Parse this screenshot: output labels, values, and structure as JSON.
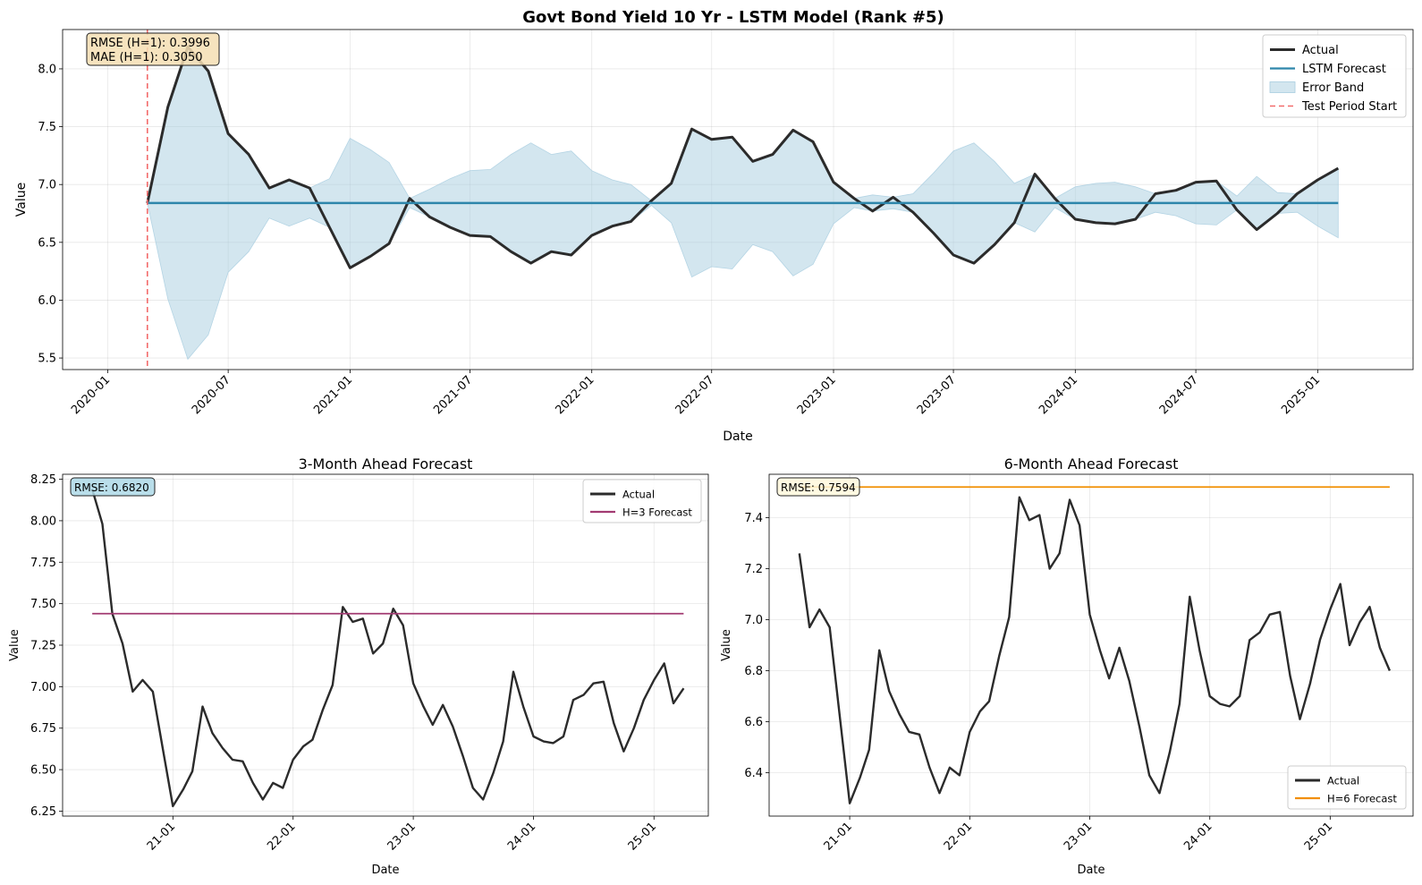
{
  "figure_title": "Govt Bond Yield 10 Yr - LSTM Model (Rank #5)",
  "chart_data": [
    {
      "type": "line",
      "title": "Govt Bond Yield 10 Yr - LSTM Model (Rank #5)",
      "xlabel": "Date",
      "ylabel": "Value",
      "x_range": [
        "2019-10-25",
        "2025-05-25"
      ],
      "ylim": [
        5.4,
        8.34
      ],
      "x_ticks": [
        {
          "date": "2020-01-01",
          "label": "2020-01"
        },
        {
          "date": "2020-07-01",
          "label": "2020-07"
        },
        {
          "date": "2021-01-01",
          "label": "2021-01"
        },
        {
          "date": "2021-07-01",
          "label": "2021-07"
        },
        {
          "date": "2022-01-01",
          "label": "2022-01"
        },
        {
          "date": "2022-07-01",
          "label": "2022-07"
        },
        {
          "date": "2023-01-01",
          "label": "2023-01"
        },
        {
          "date": "2023-07-01",
          "label": "2023-07"
        },
        {
          "date": "2024-01-01",
          "label": "2024-01"
        },
        {
          "date": "2024-07-01",
          "label": "2024-07"
        },
        {
          "date": "2025-01-01",
          "label": "2025-01"
        }
      ],
      "y_ticks": [
        "5.5",
        "6.0",
        "6.5",
        "7.0",
        "7.5",
        "8.0"
      ],
      "grid": true,
      "legend_position": "top-right",
      "annotation": [
        "RMSE (H=1): 0.3996",
        "MAE (H=1): 0.3050"
      ],
      "dates": [
        "2020-03-01",
        "2020-04-01",
        "2020-05-01",
        "2020-06-01",
        "2020-07-01",
        "2020-08-01",
        "2020-09-01",
        "2020-10-01",
        "2020-11-01",
        "2020-12-01",
        "2021-01-01",
        "2021-02-01",
        "2021-03-01",
        "2021-04-01",
        "2021-05-01",
        "2021-06-01",
        "2021-07-01",
        "2021-08-01",
        "2021-09-01",
        "2021-10-01",
        "2021-11-01",
        "2021-12-01",
        "2022-01-01",
        "2022-02-01",
        "2022-03-01",
        "2022-04-01",
        "2022-05-01",
        "2022-06-01",
        "2022-07-01",
        "2022-08-01",
        "2022-09-01",
        "2022-10-01",
        "2022-11-01",
        "2022-12-01",
        "2023-01-01",
        "2023-02-01",
        "2023-03-01",
        "2023-04-01",
        "2023-05-01",
        "2023-06-01",
        "2023-07-01",
        "2023-08-01",
        "2023-09-01",
        "2023-10-01",
        "2023-11-01",
        "2023-12-01",
        "2024-01-01",
        "2024-02-01",
        "2024-03-01",
        "2024-04-01",
        "2024-05-01",
        "2024-06-01",
        "2024-07-01",
        "2024-08-01",
        "2024-09-01",
        "2024-10-01",
        "2024-11-01",
        "2024-12-01",
        "2025-01-01",
        "2025-02-01"
      ],
      "series": [
        {
          "name": "Actual",
          "color": "#2b2b2b",
          "values": [
            6.84,
            7.67,
            8.19,
            7.98,
            7.44,
            7.26,
            6.97,
            7.04,
            6.97,
            6.63,
            6.28,
            6.38,
            6.49,
            6.88,
            6.72,
            6.63,
            6.56,
            6.55,
            6.42,
            6.32,
            6.42,
            6.39,
            6.56,
            6.64,
            6.68,
            6.86,
            7.01,
            7.48,
            7.39,
            7.41,
            7.2,
            7.26,
            7.47,
            7.37,
            7.02,
            6.88,
            6.77,
            6.89,
            6.76,
            6.58,
            6.39,
            6.32,
            6.48,
            6.67,
            7.09,
            6.88,
            6.7,
            6.67,
            6.66,
            6.7,
            6.92,
            6.95,
            7.02,
            7.03,
            6.78,
            6.61,
            6.75,
            6.92,
            7.04,
            7.14
          ]
        },
        {
          "name": "LSTM Forecast",
          "color": "#2e86ab",
          "value": 6.84
        },
        {
          "name": "Error Band",
          "color": "#a8cde0",
          "lower": [
            6.84,
            6.01,
            5.49,
            5.7,
            6.24,
            6.42,
            6.71,
            6.64,
            6.71,
            6.63,
            6.28,
            6.38,
            6.49,
            6.8,
            6.72,
            6.63,
            6.56,
            6.55,
            6.42,
            6.32,
            6.42,
            6.39,
            6.56,
            6.64,
            6.68,
            6.82,
            6.67,
            6.2,
            6.29,
            6.27,
            6.48,
            6.42,
            6.21,
            6.31,
            6.66,
            6.8,
            6.77,
            6.79,
            6.76,
            6.58,
            6.39,
            6.32,
            6.48,
            6.67,
            6.59,
            6.8,
            6.7,
            6.67,
            6.66,
            6.7,
            6.76,
            6.73,
            6.66,
            6.65,
            6.78,
            6.61,
            6.75,
            6.76,
            6.64,
            6.54
          ],
          "upper": [
            6.84,
            7.67,
            8.19,
            7.98,
            7.44,
            7.26,
            6.97,
            7.04,
            6.97,
            7.05,
            7.4,
            7.3,
            7.19,
            6.88,
            6.96,
            7.05,
            7.12,
            7.13,
            7.26,
            7.36,
            7.26,
            7.29,
            7.12,
            7.04,
            7.0,
            6.86,
            7.01,
            7.48,
            7.39,
            7.41,
            7.2,
            7.26,
            7.47,
            7.37,
            7.02,
            6.88,
            6.91,
            6.89,
            6.92,
            7.1,
            7.29,
            7.36,
            7.2,
            7.01,
            7.09,
            6.88,
            6.98,
            7.01,
            7.02,
            6.98,
            6.92,
            6.95,
            7.02,
            7.03,
            6.9,
            7.07,
            6.93,
            6.92,
            7.04,
            7.14
          ]
        },
        {
          "name": "Test Period Start",
          "color": "#f26b6b",
          "date": "2020-03-01"
        }
      ]
    },
    {
      "type": "line",
      "title": "3-Month Ahead Forecast",
      "xlabel": "Date",
      "ylabel": "Value",
      "x_range": [
        "2020-02-01",
        "2025-06-15"
      ],
      "ylim": [
        6.22,
        8.28
      ],
      "x_ticks": [
        {
          "date": "2021-01-01",
          "label": "21-01"
        },
        {
          "date": "2022-01-01",
          "label": "22-01"
        },
        {
          "date": "2023-01-01",
          "label": "23-01"
        },
        {
          "date": "2024-01-01",
          "label": "24-01"
        },
        {
          "date": "2025-01-01",
          "label": "25-01"
        }
      ],
      "y_ticks": [
        "6.25",
        "6.50",
        "6.75",
        "7.00",
        "7.25",
        "7.50",
        "7.75",
        "8.00",
        "8.25"
      ],
      "grid": true,
      "legend_position": "top-right",
      "annotation": [
        "RMSE: 0.6820"
      ],
      "dates": [
        "2020-05-01",
        "2020-06-01",
        "2020-07-01",
        "2020-08-01",
        "2020-09-01",
        "2020-10-01",
        "2020-11-01",
        "2020-12-01",
        "2021-01-01",
        "2021-02-01",
        "2021-03-01",
        "2021-04-01",
        "2021-05-01",
        "2021-06-01",
        "2021-07-01",
        "2021-08-01",
        "2021-09-01",
        "2021-10-01",
        "2021-11-01",
        "2021-12-01",
        "2022-01-01",
        "2022-02-01",
        "2022-03-01",
        "2022-04-01",
        "2022-05-01",
        "2022-06-01",
        "2022-07-01",
        "2022-08-01",
        "2022-09-01",
        "2022-10-01",
        "2022-11-01",
        "2022-12-01",
        "2023-01-01",
        "2023-02-01",
        "2023-03-01",
        "2023-04-01",
        "2023-05-01",
        "2023-06-01",
        "2023-07-01",
        "2023-08-01",
        "2023-09-01",
        "2023-10-01",
        "2023-11-01",
        "2023-12-01",
        "2024-01-01",
        "2024-02-01",
        "2024-03-01",
        "2024-04-01",
        "2024-05-01",
        "2024-06-01",
        "2024-07-01",
        "2024-08-01",
        "2024-09-01",
        "2024-10-01",
        "2024-11-01",
        "2024-12-01",
        "2025-01-01",
        "2025-02-01",
        "2025-03-01",
        "2025-04-01"
      ],
      "series": [
        {
          "name": "Actual",
          "color": "#2b2b2b",
          "values": [
            8.19,
            7.98,
            7.44,
            7.26,
            6.97,
            7.04,
            6.97,
            6.63,
            6.28,
            6.38,
            6.49,
            6.88,
            6.72,
            6.63,
            6.56,
            6.55,
            6.42,
            6.32,
            6.42,
            6.39,
            6.56,
            6.64,
            6.68,
            6.86,
            7.01,
            7.48,
            7.39,
            7.41,
            7.2,
            7.26,
            7.47,
            7.37,
            7.02,
            6.88,
            6.77,
            6.89,
            6.76,
            6.58,
            6.39,
            6.32,
            6.48,
            6.67,
            7.09,
            6.88,
            6.7,
            6.67,
            6.66,
            6.7,
            6.92,
            6.95,
            7.02,
            7.03,
            6.78,
            6.61,
            6.75,
            6.92,
            7.04,
            7.14,
            6.9,
            6.99
          ]
        },
        {
          "name": "H=3 Forecast",
          "color": "#a23b72",
          "value": 7.44
        }
      ]
    },
    {
      "type": "line",
      "title": "6-Month Ahead Forecast",
      "xlabel": "Date",
      "ylabel": "Value",
      "x_range": [
        "2020-05-01",
        "2025-09-10"
      ],
      "ylim": [
        6.23,
        7.57
      ],
      "x_ticks": [
        {
          "date": "2021-01-01",
          "label": "21-01"
        },
        {
          "date": "2022-01-01",
          "label": "22-01"
        },
        {
          "date": "2023-01-01",
          "label": "23-01"
        },
        {
          "date": "2024-01-01",
          "label": "24-01"
        },
        {
          "date": "2025-01-01",
          "label": "25-01"
        }
      ],
      "y_ticks": [
        "6.4",
        "6.6",
        "6.8",
        "7.0",
        "7.2",
        "7.4"
      ],
      "grid": true,
      "legend_position": "bottom-right",
      "annotation": [
        "RMSE: 0.7594"
      ],
      "dates": [
        "2020-08-01",
        "2020-09-01",
        "2020-10-01",
        "2020-11-01",
        "2020-12-01",
        "2021-01-01",
        "2021-02-01",
        "2021-03-01",
        "2021-04-01",
        "2021-05-01",
        "2021-06-01",
        "2021-07-01",
        "2021-08-01",
        "2021-09-01",
        "2021-10-01",
        "2021-11-01",
        "2021-12-01",
        "2022-01-01",
        "2022-02-01",
        "2022-03-01",
        "2022-04-01",
        "2022-05-01",
        "2022-06-01",
        "2022-07-01",
        "2022-08-01",
        "2022-09-01",
        "2022-10-01",
        "2022-11-01",
        "2022-12-01",
        "2023-01-01",
        "2023-02-01",
        "2023-03-01",
        "2023-04-01",
        "2023-05-01",
        "2023-06-01",
        "2023-07-01",
        "2023-08-01",
        "2023-09-01",
        "2023-10-01",
        "2023-11-01",
        "2023-12-01",
        "2024-01-01",
        "2024-02-01",
        "2024-03-01",
        "2024-04-01",
        "2024-05-01",
        "2024-06-01",
        "2024-07-01",
        "2024-08-01",
        "2024-09-01",
        "2024-10-01",
        "2024-11-01",
        "2024-12-01",
        "2025-01-01",
        "2025-02-01",
        "2025-03-01",
        "2025-04-01",
        "2025-05-01",
        "2025-06-01",
        "2025-07-01"
      ],
      "series": [
        {
          "name": "Actual",
          "color": "#2b2b2b",
          "values": [
            7.26,
            6.97,
            7.04,
            6.97,
            6.63,
            6.28,
            6.38,
            6.49,
            6.88,
            6.72,
            6.63,
            6.56,
            6.55,
            6.42,
            6.32,
            6.42,
            6.39,
            6.56,
            6.64,
            6.68,
            6.86,
            7.01,
            7.48,
            7.39,
            7.41,
            7.2,
            7.26,
            7.47,
            7.37,
            7.02,
            6.88,
            6.77,
            6.89,
            6.76,
            6.58,
            6.39,
            6.32,
            6.48,
            6.67,
            7.09,
            6.88,
            6.7,
            6.67,
            6.66,
            6.7,
            6.92,
            6.95,
            7.02,
            7.03,
            6.78,
            6.61,
            6.75,
            6.92,
            7.04,
            7.14,
            6.9,
            6.99,
            7.05,
            6.89,
            6.8
          ]
        },
        {
          "name": "H=6 Forecast",
          "color": "#f18f01",
          "value": 7.52
        }
      ]
    }
  ]
}
